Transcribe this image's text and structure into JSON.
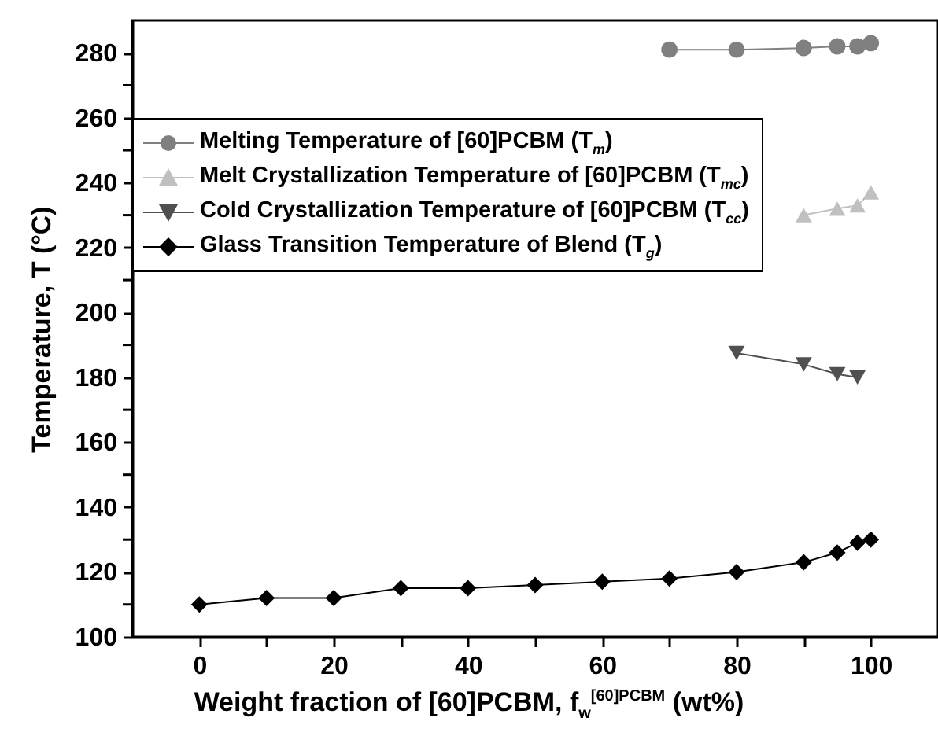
{
  "chart_data": {
    "type": "line",
    "xlabel": "Weight fraction of [60]PCBM, f$_{w}$$^{[60]PCBM}$ (wt%)",
    "ylabel": "Temperature, T (°C)",
    "xlim": [
      -10,
      110
    ],
    "xticks": [
      0,
      {
        "value": 10,
        "label": null
      },
      20,
      {
        "value": 30,
        "label": null
      },
      40,
      {
        "value": 50,
        "label": null
      },
      60,
      {
        "value": 70,
        "label": null
      },
      80,
      {
        "value": 90,
        "label": null
      },
      100
    ],
    "ylim": [
      100,
      290
    ],
    "yticks": [
      100,
      {
        "value": 110,
        "label": null
      },
      120,
      {
        "value": 130,
        "label": null
      },
      140,
      {
        "value": 150,
        "label": null
      },
      160,
      {
        "value": 170,
        "label": null
      },
      180,
      {
        "value": 190,
        "label": null
      },
      200,
      {
        "value": 210,
        "label": null
      },
      220,
      {
        "value": 230,
        "label": null
      },
      240,
      {
        "value": 250,
        "label": null
      },
      260,
      {
        "value": 270,
        "label": null
      },
      280
    ],
    "grid": false,
    "legend": "top left",
    "line_style": "solid",
    "series": [
      {
        "name": "Melting Temperature of [60]PCBM (T$_{m}$)",
        "color": "#808080",
        "marker": "circle",
        "x": [
          70,
          80,
          90,
          95,
          98,
          100
        ],
        "values": [
          281,
          281,
          281.5,
          282,
          282,
          283
        ]
      },
      {
        "name": "Melt Crystallization Temperature of [60]PCBM (T$_{mc}$)",
        "color": "#c0c0c0",
        "marker": "triangle",
        "x": [
          90,
          95,
          98,
          100
        ],
        "values": [
          230,
          232,
          233,
          237
        ]
      },
      {
        "name": "Cold Crystallization Temperature of [60]PCBM (T$_{cc}$)",
        "color": "#505050",
        "marker": "triangle-down",
        "x": [
          80,
          90,
          95,
          98
        ],
        "values": [
          187.5,
          184,
          181,
          180
        ]
      },
      {
        "name": "Glass Transition Temperature of Blend (T$_{g}$)",
        "color": "#000000",
        "marker": "diamond",
        "x": [
          0,
          10,
          20,
          30,
          40,
          50,
          60,
          70,
          80,
          90,
          95,
          98,
          100
        ],
        "values": [
          110,
          112,
          112,
          115,
          115,
          116,
          117,
          118,
          120,
          123,
          126,
          129,
          130
        ]
      }
    ]
  }
}
